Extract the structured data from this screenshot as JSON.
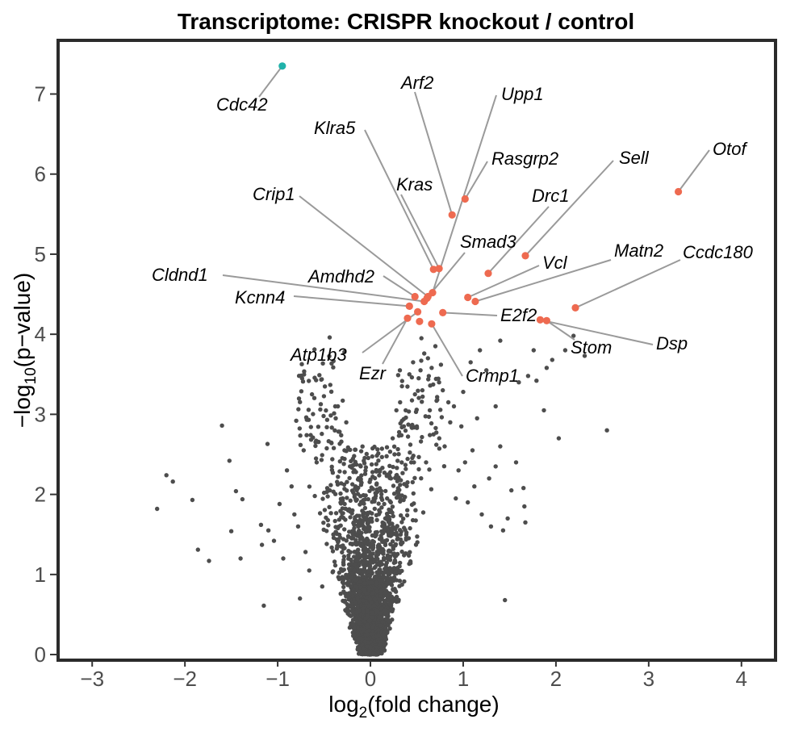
{
  "chart_data": {
    "type": "scatter",
    "title": "Transcriptome: CRISPR knockout / control",
    "xlabel": {
      "prefix": "log",
      "sub": "2",
      "suffix": "(fold change)"
    },
    "ylabel": {
      "prefix": "−log",
      "sub": "10",
      "suffix": "(p−value)"
    },
    "xlim": [
      -3.35,
      4.35
    ],
    "ylim": [
      -0.05,
      7.65
    ],
    "x_ticks": [
      -3,
      -2,
      -1,
      0,
      1,
      2,
      3,
      4
    ],
    "x_tick_labels": [
      "−3",
      "−2",
      "−1",
      "0",
      "1",
      "2",
      "3",
      "4"
    ],
    "y_ticks": [
      0,
      1,
      2,
      3,
      4,
      5,
      6,
      7
    ],
    "y_tick_labels": [
      "0",
      "1",
      "2",
      "3",
      "4",
      "5",
      "6",
      "7"
    ],
    "grid": false,
    "colors": {
      "background_points": "#4d4d4d",
      "up_regulated": "#ee6a50",
      "down_regulated": "#20b2aa",
      "leader_line": "#9a9a9a"
    },
    "highlighted_genes": [
      {
        "gene": "Cdc42",
        "x": -0.95,
        "y": 7.35,
        "direction": "down"
      },
      {
        "gene": "Otof",
        "x": 3.32,
        "y": 5.78,
        "direction": "up"
      },
      {
        "gene": "Rasgrp2",
        "x": 1.02,
        "y": 5.69,
        "direction": "up"
      },
      {
        "gene": "Arf2",
        "x": 0.88,
        "y": 5.49,
        "direction": "up"
      },
      {
        "gene": "Sell",
        "x": 1.67,
        "y": 4.98,
        "direction": "up"
      },
      {
        "gene": "Kras",
        "x": 0.74,
        "y": 4.82,
        "direction": "up"
      },
      {
        "gene": "Klra5",
        "x": 0.68,
        "y": 4.81,
        "direction": "up"
      },
      {
        "gene": "Drc1",
        "x": 1.27,
        "y": 4.76,
        "direction": "up"
      },
      {
        "gene": "Upp1",
        "x": 0.67,
        "y": 4.52,
        "direction": "up"
      },
      {
        "gene": "Crip1",
        "x": 0.62,
        "y": 4.47,
        "direction": "up"
      },
      {
        "gene": "Smad3",
        "x": 0.61,
        "y": 4.45,
        "direction": "up"
      },
      {
        "gene": "Amdhd2",
        "x": 0.48,
        "y": 4.47,
        "direction": "up"
      },
      {
        "gene": "Vcl",
        "x": 1.05,
        "y": 4.46,
        "direction": "up"
      },
      {
        "gene": "Matn2",
        "x": 1.13,
        "y": 4.41,
        "direction": "up"
      },
      {
        "gene": "Cldnd1",
        "x": 0.58,
        "y": 4.41,
        "direction": "up"
      },
      {
        "gene": "Kcnn4",
        "x": 0.42,
        "y": 4.35,
        "direction": "up"
      },
      {
        "gene": "Ccdc180",
        "x": 2.21,
        "y": 4.33,
        "direction": "up"
      },
      {
        "gene": "Atp1b3",
        "x": 0.51,
        "y": 4.28,
        "direction": "up"
      },
      {
        "gene": "E2f2",
        "x": 0.78,
        "y": 4.27,
        "direction": "up"
      },
      {
        "gene": "Ezr",
        "x": 0.4,
        "y": 4.2,
        "direction": "up"
      },
      {
        "gene": "Dsp",
        "x": 1.83,
        "y": 4.18,
        "direction": "up"
      },
      {
        "gene": "Stom",
        "x": 1.9,
        "y": 4.17,
        "direction": "up"
      },
      {
        "gene": "Crmp1",
        "x": 0.66,
        "y": 4.13,
        "direction": "up"
      },
      {
        "gene": "",
        "x": 0.53,
        "y": 4.16,
        "direction": "up"
      }
    ],
    "background_points": [
      [
        -2.3,
        1.82
      ],
      [
        -2.2,
        2.24
      ],
      [
        -2.13,
        2.16
      ],
      [
        -1.92,
        1.93
      ],
      [
        -1.86,
        1.31
      ],
      [
        -1.74,
        1.17
      ],
      [
        -1.6,
        2.86
      ],
      [
        -1.52,
        2.42
      ],
      [
        -1.5,
        1.54
      ],
      [
        -1.45,
        2.04
      ],
      [
        -1.4,
        1.2
      ],
      [
        -1.38,
        1.94
      ],
      [
        -1.18,
        1.62
      ],
      [
        -1.17,
        1.37
      ],
      [
        -1.15,
        0.61
      ],
      [
        -1.11,
        2.63
      ],
      [
        -1.1,
        1.55
      ],
      [
        -1.04,
        1.42
      ],
      [
        -0.98,
        1.88
      ],
      [
        -0.94,
        1.2
      ],
      [
        -0.9,
        2.3
      ],
      [
        -0.85,
        2.1
      ],
      [
        -0.82,
        1.75
      ],
      [
        -0.8,
        2.92
      ],
      [
        -0.78,
        1.6
      ],
      [
        -0.76,
        0.7
      ],
      [
        -0.72,
        2.55
      ],
      [
        -0.7,
        1.28
      ],
      [
        -0.66,
        1.05
      ],
      [
        -0.63,
        3.25
      ],
      [
        -0.62,
        2.71
      ],
      [
        -0.6,
        1.98
      ],
      [
        -0.58,
        2.4
      ],
      [
        -0.55,
        3.49
      ],
      [
        -0.52,
        0.85
      ],
      [
        -0.5,
        2.02
      ],
      [
        -0.48,
        1.71
      ],
      [
        -0.47,
        2.84
      ],
      [
        -0.44,
        3.96
      ],
      [
        -0.42,
        2.64
      ],
      [
        -0.4,
        1.5
      ],
      [
        -0.38,
        3.1
      ],
      [
        -0.35,
        2.22
      ],
      [
        -0.32,
        1.35
      ],
      [
        -0.3,
        1.95
      ],
      [
        -0.28,
        2.55
      ],
      [
        -0.26,
        2.9
      ],
      [
        -0.24,
        1.8
      ],
      [
        -0.22,
        2.35
      ],
      [
        -0.2,
        1.45
      ],
      [
        -0.18,
        1.65
      ],
      [
        -0.16,
        2.1
      ],
      [
        -0.14,
        1.25
      ],
      [
        -0.12,
        0.95
      ],
      [
        -0.1,
        1.05
      ],
      [
        -0.08,
        0.75
      ],
      [
        -0.06,
        0.55
      ],
      [
        -0.04,
        0.4
      ],
      [
        -0.03,
        0.25
      ],
      [
        -0.02,
        0.15
      ],
      [
        0.0,
        0.05
      ],
      [
        0.02,
        0.18
      ],
      [
        0.04,
        0.48
      ],
      [
        0.06,
        0.62
      ],
      [
        0.08,
        0.9
      ],
      [
        0.1,
        1.15
      ],
      [
        0.12,
        1.45
      ],
      [
        0.14,
        1.3
      ],
      [
        0.16,
        1.7
      ],
      [
        0.18,
        1.95
      ],
      [
        0.2,
        2.25
      ],
      [
        0.22,
        1.8
      ],
      [
        0.24,
        2.7
      ],
      [
        0.26,
        2.5
      ],
      [
        0.28,
        3.05
      ],
      [
        0.3,
        2.2
      ],
      [
        0.32,
        3.15
      ],
      [
        0.34,
        3.35
      ],
      [
        0.36,
        2.85
      ],
      [
        0.38,
        3.05
      ],
      [
        0.4,
        2.15
      ],
      [
        0.42,
        3.5
      ],
      [
        0.44,
        2.4
      ],
      [
        0.46,
        3.65
      ],
      [
        0.48,
        3.25
      ],
      [
        0.5,
        2.85
      ],
      [
        0.52,
        3.45
      ],
      [
        0.54,
        3.55
      ],
      [
        0.56,
        3.3
      ],
      [
        0.58,
        3.76
      ],
      [
        0.6,
        2.4
      ],
      [
        0.62,
        3.7
      ],
      [
        0.64,
        3.05
      ],
      [
        0.66,
        3.58
      ],
      [
        0.68,
        2.75
      ],
      [
        0.7,
        3.85
      ],
      [
        0.72,
        3.18
      ],
      [
        0.74,
        3.4
      ],
      [
        0.76,
        3.62
      ],
      [
        0.78,
        3.3
      ],
      [
        0.8,
        2.6
      ],
      [
        0.84,
        3.15
      ],
      [
        0.86,
        2.9
      ],
      [
        0.9,
        3.1
      ],
      [
        0.92,
        1.95
      ],
      [
        0.95,
        2.3
      ],
      [
        0.98,
        2.85
      ],
      [
        1.0,
        3.28
      ],
      [
        1.02,
        2.4
      ],
      [
        1.05,
        1.9
      ],
      [
        1.08,
        3.65
      ],
      [
        1.1,
        2.55
      ],
      [
        1.12,
        2.1
      ],
      [
        1.15,
        2.95
      ],
      [
        1.18,
        3.8
      ],
      [
        1.2,
        1.75
      ],
      [
        1.25,
        3.55
      ],
      [
        1.28,
        2.2
      ],
      [
        1.3,
        1.6
      ],
      [
        1.35,
        2.35
      ],
      [
        1.4,
        2.6
      ],
      [
        1.43,
        1.55
      ],
      [
        1.45,
        0.68
      ],
      [
        1.48,
        1.7
      ],
      [
        1.52,
        2.05
      ],
      [
        1.57,
        2.4
      ],
      [
        1.6,
        3.4
      ],
      [
        1.65,
        2.08
      ],
      [
        1.66,
        1.85
      ],
      [
        1.67,
        1.65
      ],
      [
        1.7,
        3.48
      ],
      [
        1.76,
        3.8
      ],
      [
        1.79,
        3.42
      ],
      [
        1.9,
        3.58
      ],
      [
        1.96,
        3.68
      ],
      [
        2.03,
        2.7
      ],
      [
        2.1,
        3.8
      ],
      [
        2.19,
        3.98
      ],
      [
        2.31,
        3.73
      ],
      [
        2.55,
        2.8
      ],
      [
        1.87,
        3.05
      ],
      [
        1.4,
        3.92
      ],
      [
        1.35,
        3.1
      ],
      [
        0.55,
        3.95
      ]
    ]
  }
}
